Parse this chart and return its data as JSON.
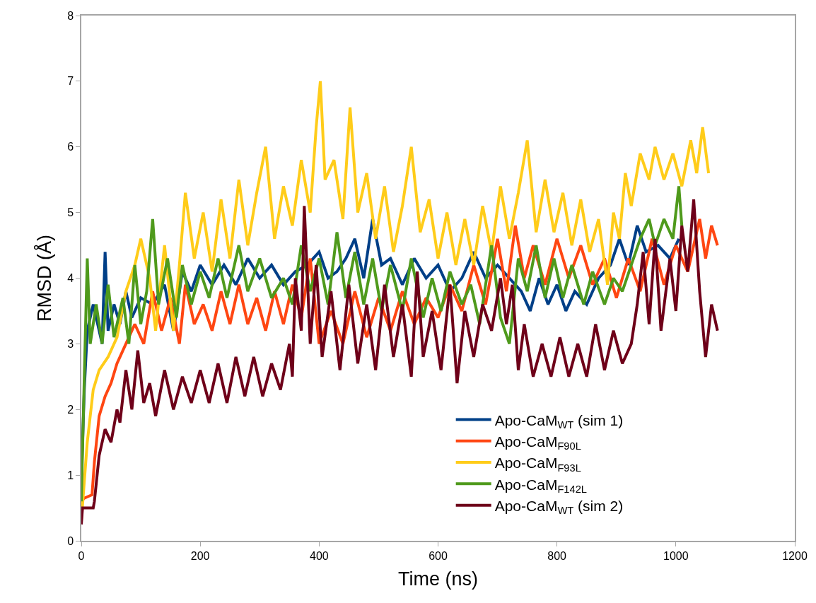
{
  "chart_data": {
    "type": "line",
    "xlabel": "Time (ns)",
    "ylabel": "RMSD (Å)",
    "xlim": [
      0,
      1200
    ],
    "xticks": [
      0,
      200,
      400,
      600,
      800,
      1000,
      1200
    ],
    "ylim": [
      0,
      8
    ],
    "yticks": [
      0,
      1,
      2,
      3,
      4,
      5,
      6,
      7,
      8
    ],
    "grid": false,
    "legend": "bottom right",
    "marker": "none",
    "line_style": "solid",
    "series": [
      {
        "name": "Apo-CaM$_{WT}$ (sim 1)",
        "color": "#003f87",
        "x": [
          0,
          5,
          10,
          20,
          35,
          40,
          45,
          55,
          65,
          75,
          85,
          100,
          120,
          140,
          155,
          170,
          185,
          200,
          220,
          240,
          260,
          280,
          300,
          320,
          340,
          360,
          380,
          400,
          415,
          430,
          445,
          460,
          475,
          490,
          505,
          520,
          540,
          560,
          580,
          600,
          620,
          640,
          660,
          680,
          700,
          720,
          740,
          755,
          770,
          785,
          800,
          815,
          830,
          850,
          870,
          890,
          905,
          920,
          935,
          950,
          970,
          990,
          1005
        ],
        "values": [
          0.9,
          2.3,
          3.2,
          3.6,
          3.0,
          4.4,
          3.2,
          3.6,
          3.3,
          3.8,
          3.4,
          3.7,
          3.6,
          3.9,
          3.2,
          4.1,
          3.8,
          4.2,
          3.9,
          4.2,
          3.9,
          4.3,
          4.0,
          4.2,
          3.9,
          4.1,
          4.2,
          4.4,
          4.0,
          4.1,
          4.3,
          4.6,
          4.0,
          4.9,
          4.2,
          4.3,
          3.9,
          4.3,
          4.0,
          4.2,
          3.8,
          4.0,
          4.4,
          4.0,
          4.2,
          4.0,
          3.8,
          3.5,
          4.0,
          3.6,
          3.9,
          3.5,
          3.8,
          3.6,
          4.0,
          4.2,
          4.6,
          4.2,
          4.8,
          4.4,
          4.5,
          4.3,
          4.6
        ]
      },
      {
        "name": "Apo-CaM$_{F90L}$",
        "color": "#ff4612",
        "x": [
          0,
          5,
          18,
          22,
          30,
          40,
          50,
          60,
          75,
          90,
          105,
          120,
          135,
          150,
          165,
          175,
          190,
          205,
          220,
          235,
          250,
          265,
          280,
          295,
          310,
          325,
          340,
          355,
          370,
          385,
          400,
          420,
          440,
          460,
          480,
          500,
          520,
          540,
          560,
          580,
          600,
          620,
          640,
          660,
          680,
          700,
          715,
          730,
          745,
          760,
          780,
          800,
          820,
          840,
          860,
          880,
          900,
          920,
          940,
          960,
          980,
          1000,
          1020,
          1040,
          1050,
          1060,
          1070
        ],
        "values": [
          0.6,
          0.65,
          0.7,
          1.2,
          1.9,
          2.2,
          2.4,
          2.7,
          3.0,
          3.3,
          3.0,
          3.8,
          3.2,
          3.7,
          3.0,
          3.9,
          3.3,
          3.6,
          3.2,
          3.8,
          3.3,
          3.9,
          3.3,
          3.7,
          3.2,
          3.8,
          3.3,
          3.9,
          3.4,
          4.3,
          3.0,
          3.5,
          3.0,
          3.8,
          3.1,
          3.7,
          3.2,
          3.8,
          3.3,
          3.7,
          3.4,
          3.9,
          3.5,
          4.2,
          3.6,
          4.6,
          3.8,
          4.8,
          4.0,
          4.5,
          3.9,
          4.6,
          4.0,
          4.5,
          3.9,
          4.3,
          3.7,
          4.3,
          3.8,
          4.6,
          3.9,
          4.5,
          4.1,
          4.9,
          4.3,
          4.8,
          4.5
        ]
      },
      {
        "name": "Apo-CaM$_{F93L}$",
        "color": "#ffcc1a",
        "x": [
          0,
          10,
          20,
          30,
          45,
          60,
          75,
          90,
          100,
          115,
          125,
          140,
          155,
          165,
          175,
          190,
          205,
          220,
          235,
          250,
          265,
          280,
          295,
          310,
          325,
          340,
          355,
          370,
          385,
          395,
          402,
          410,
          425,
          440,
          452,
          465,
          480,
          495,
          510,
          525,
          540,
          555,
          570,
          585,
          600,
          615,
          630,
          645,
          660,
          675,
          690,
          705,
          720,
          735,
          750,
          765,
          780,
          795,
          810,
          825,
          840,
          855,
          870,
          885,
          895,
          905,
          915,
          925,
          940,
          955,
          965,
          980,
          995,
          1010,
          1025,
          1035,
          1045,
          1055
        ],
        "values": [
          0.3,
          1.5,
          2.3,
          2.6,
          2.8,
          3.1,
          3.8,
          4.2,
          4.6,
          4.0,
          3.2,
          4.5,
          3.2,
          4.2,
          5.3,
          4.3,
          5.0,
          4.1,
          5.2,
          4.3,
          5.5,
          4.5,
          5.3,
          6.0,
          4.6,
          5.4,
          4.8,
          5.8,
          5.0,
          6.3,
          7.0,
          5.5,
          5.8,
          4.9,
          6.6,
          5.0,
          5.6,
          4.6,
          5.4,
          4.4,
          5.1,
          6.0,
          4.7,
          5.2,
          4.3,
          5.0,
          4.2,
          4.9,
          4.2,
          5.1,
          4.4,
          5.4,
          4.6,
          5.3,
          6.1,
          4.7,
          5.5,
          4.7,
          5.3,
          4.5,
          5.2,
          4.4,
          4.9,
          3.9,
          5.0,
          4.6,
          5.6,
          5.1,
          5.9,
          5.5,
          6.0,
          5.5,
          5.9,
          5.4,
          6.1,
          5.6,
          6.3,
          5.6
        ]
      },
      {
        "name": "Apo-CaM$_{F142L}$",
        "color": "#4f9a1c",
        "x": [
          0,
          5,
          10,
          15,
          25,
          35,
          45,
          55,
          70,
          80,
          90,
          100,
          110,
          120,
          130,
          145,
          160,
          170,
          185,
          200,
          215,
          230,
          245,
          265,
          280,
          300,
          320,
          340,
          355,
          370,
          385,
          400,
          415,
          430,
          445,
          460,
          475,
          490,
          505,
          520,
          540,
          555,
          575,
          590,
          605,
          620,
          640,
          655,
          670,
          690,
          705,
          720,
          735,
          750,
          765,
          780,
          795,
          810,
          825,
          845,
          860,
          880,
          895,
          910,
          925,
          940,
          955,
          965,
          980,
          995,
          1005,
          1010
        ],
        "values": [
          0.6,
          2.5,
          4.3,
          3.0,
          3.6,
          3.0,
          3.9,
          3.1,
          3.7,
          3.0,
          4.2,
          3.3,
          3.8,
          4.9,
          3.6,
          4.3,
          3.4,
          4.2,
          3.6,
          4.1,
          3.7,
          4.3,
          3.7,
          4.5,
          3.8,
          4.3,
          3.7,
          4.0,
          3.6,
          4.5,
          3.8,
          4.3,
          3.6,
          4.7,
          3.7,
          4.4,
          3.6,
          4.3,
          3.5,
          4.2,
          3.5,
          4.3,
          3.4,
          4.0,
          3.5,
          4.1,
          3.6,
          3.9,
          3.3,
          4.5,
          3.4,
          3.0,
          4.3,
          3.8,
          4.5,
          3.7,
          4.3,
          3.7,
          4.2,
          3.6,
          4.1,
          3.6,
          4.0,
          3.8,
          4.2,
          4.6,
          4.9,
          4.5,
          4.9,
          4.6,
          5.4,
          4.8
        ]
      },
      {
        "name": "Apo-CaM$_{WT}$ (sim 2)",
        "color": "#6e0019",
        "x": [
          0,
          2,
          20,
          22,
          30,
          40,
          50,
          60,
          65,
          75,
          85,
          95,
          105,
          115,
          125,
          140,
          155,
          170,
          185,
          200,
          215,
          230,
          245,
          260,
          275,
          290,
          305,
          320,
          335,
          350,
          355,
          360,
          370,
          375,
          385,
          395,
          405,
          420,
          435,
          450,
          465,
          480,
          495,
          510,
          525,
          540,
          555,
          565,
          575,
          590,
          605,
          620,
          632,
          645,
          660,
          675,
          690,
          705,
          715,
          725,
          735,
          745,
          760,
          775,
          790,
          805,
          820,
          835,
          850,
          865,
          880,
          895,
          910,
          925,
          935,
          945,
          955,
          965,
          975,
          990,
          1000,
          1010,
          1020,
          1030,
          1040,
          1050,
          1060,
          1070
        ],
        "values": [
          0.25,
          0.5,
          0.5,
          0.6,
          1.3,
          1.7,
          1.5,
          2.0,
          1.8,
          2.6,
          2.0,
          2.9,
          2.1,
          2.4,
          1.9,
          2.6,
          2.0,
          2.5,
          2.1,
          2.6,
          2.1,
          2.7,
          2.1,
          2.8,
          2.2,
          2.8,
          2.2,
          2.7,
          2.3,
          3.0,
          2.5,
          4.0,
          3.2,
          5.1,
          3.0,
          4.2,
          2.8,
          3.8,
          2.6,
          3.9,
          2.7,
          3.6,
          2.6,
          3.9,
          2.8,
          3.6,
          2.5,
          4.1,
          2.8,
          3.5,
          2.6,
          3.9,
          2.4,
          3.5,
          2.8,
          3.6,
          3.2,
          4.0,
          3.3,
          3.9,
          2.6,
          3.3,
          2.5,
          3.0,
          2.5,
          3.1,
          2.5,
          3.0,
          2.5,
          3.3,
          2.6,
          3.2,
          2.7,
          3.0,
          3.6,
          4.4,
          3.3,
          4.6,
          3.2,
          4.3,
          3.5,
          4.8,
          4.1,
          5.2,
          3.8,
          2.8,
          3.6,
          3.2
        ]
      }
    ]
  }
}
